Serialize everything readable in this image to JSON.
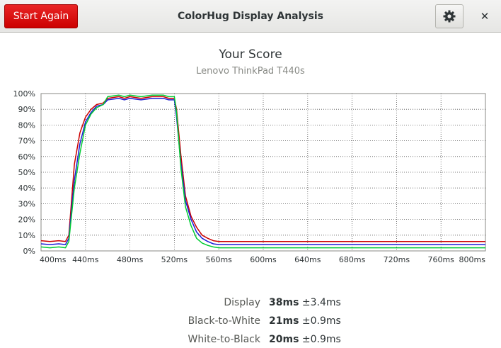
{
  "window": {
    "title": "ColorHug Display Analysis",
    "start_again_label": "Start Again",
    "settings_icon": "gear-icon",
    "close_label": "✕"
  },
  "score": {
    "title": "Your Score",
    "device": "Lenovo ThinkPad T440s"
  },
  "chart_data": {
    "type": "line",
    "title": "",
    "xlabel": "",
    "ylabel": "",
    "xlim": [
      400,
      800
    ],
    "ylim": [
      0,
      100
    ],
    "x_ticks": [
      400,
      440,
      480,
      520,
      560,
      600,
      640,
      680,
      720,
      760,
      800
    ],
    "x_tick_labels": [
      "400ms",
      "440ms",
      "480ms",
      "520ms",
      "560ms",
      "600ms",
      "640ms",
      "680ms",
      "720ms",
      "760ms",
      "800ms"
    ],
    "y_ticks": [
      0,
      10,
      20,
      30,
      40,
      50,
      60,
      70,
      80,
      90,
      100
    ],
    "y_tick_labels": [
      "0%",
      "10%",
      "20%",
      "30%",
      "40%",
      "50%",
      "60%",
      "70%",
      "80%",
      "90%",
      "100%"
    ],
    "grid": true,
    "series": [
      {
        "color": "#cc0000",
        "x": [
          400,
          408,
          416,
          422,
          425,
          430,
          435,
          440,
          445,
          450,
          456,
          460,
          470,
          475,
          480,
          490,
          500,
          510,
          515,
          520,
          522,
          526,
          530,
          535,
          540,
          545,
          550,
          555,
          560,
          800
        ],
        "y": [
          6.5,
          6,
          6.5,
          6,
          10,
          55,
          75,
          85,
          90,
          93,
          94,
          97,
          98,
          97,
          98,
          97,
          98,
          98,
          97,
          97,
          90,
          60,
          35,
          22,
          15,
          10,
          8,
          6.5,
          6,
          6
        ]
      },
      {
        "color": "#1c1cd6",
        "x": [
          400,
          408,
          416,
          422,
          425,
          430,
          435,
          440,
          445,
          450,
          456,
          460,
          470,
          475,
          480,
          490,
          500,
          510,
          515,
          520,
          522,
          526,
          530,
          535,
          540,
          545,
          550,
          555,
          560,
          800
        ],
        "y": [
          4.5,
          4,
          4.5,
          4,
          8,
          45,
          68,
          82,
          88,
          92,
          93,
          96,
          97,
          96,
          97,
          96,
          97,
          97,
          96,
          96,
          85,
          55,
          32,
          20,
          12,
          8,
          6,
          4.5,
          4,
          4
        ]
      },
      {
        "color": "#00cc33",
        "x": [
          400,
          408,
          416,
          422,
          425,
          430,
          435,
          440,
          445,
          450,
          456,
          460,
          470,
          475,
          480,
          490,
          500,
          510,
          515,
          520,
          522,
          526,
          530,
          535,
          540,
          545,
          550,
          555,
          560,
          800
        ],
        "y": [
          2.5,
          2,
          2.5,
          2,
          6,
          40,
          62,
          80,
          87,
          91,
          93,
          98,
          99,
          98,
          99,
          98,
          99,
          99,
          98,
          98,
          88,
          52,
          28,
          16,
          8,
          5,
          3.5,
          2.5,
          2,
          2
        ]
      }
    ]
  },
  "results": [
    {
      "label": "Display",
      "value": "38ms",
      "error": "±3.4ms"
    },
    {
      "label": "Black-to-White",
      "value": "21ms",
      "error": "±0.9ms"
    },
    {
      "label": "White-to-Black",
      "value": "20ms",
      "error": "±0.9ms"
    }
  ]
}
